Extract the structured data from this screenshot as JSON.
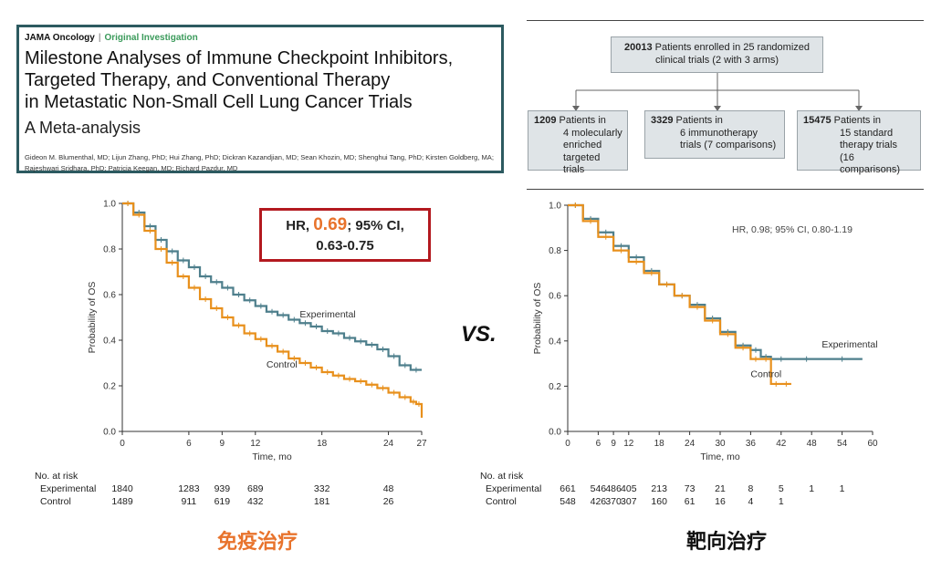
{
  "paper": {
    "journal": "JAMA Oncology",
    "category": "Original Investigation",
    "title_lines": [
      "Milestone Analyses of Immune Checkpoint Inhibitors,",
      "Targeted Therapy, and Conventional Therapy",
      "in Metastatic Non-Small Cell Lung Cancer Trials"
    ],
    "subtitle": "A Meta-analysis",
    "authors_lines": [
      "Gideon M. Blumenthal, MD; Lijun Zhang, PhD; Hui Zhang, PhD; Dickran Kazandjian, MD; Sean Khozin, MD; Shenghui Tang, PhD; Kirsten Goldberg, MA;",
      "Rajeshwari Sridhara, PhD; Patricia Keegan, MD; Richard Pazdur, MD"
    ]
  },
  "flow": {
    "top": {
      "count": "20013",
      "text_line1": "Patients enrolled in 25 randomized",
      "text_line2": "clinical trials (2 with 3 arms)"
    },
    "boxes": [
      {
        "count": "1209",
        "lines": [
          "Patients in",
          "4 molecularly",
          "enriched",
          "targeted trials"
        ]
      },
      {
        "count": "3329",
        "lines": [
          "Patients in",
          "6 immunotherapy",
          "trials (7 comparisons)"
        ]
      },
      {
        "count": "15475",
        "lines": [
          "Patients in",
          "15 standard",
          "therapy trials",
          "(16 comparisons)"
        ]
      }
    ]
  },
  "vs_label": "VS.",
  "hr_box": {
    "prefix": "HR, ",
    "value": "0.69",
    "suffix": "; 95% CI,",
    "line2": "0.63-0.75"
  },
  "labels": {
    "immunotherapy": "免疫治疗",
    "targeted": "靶向治疗"
  },
  "colors": {
    "experimental": "#4e7f8c",
    "control": "#e8901c",
    "border": "#2c5a60",
    "hr_border": "#b3191f",
    "accent": "#e8732c"
  },
  "chart_data": [
    {
      "type": "line",
      "title": "",
      "xlabel": "Time, mo",
      "ylabel": "Probability of OS",
      "xlim": [
        0,
        27
      ],
      "ylim": [
        0,
        1.0
      ],
      "xticks": [
        0,
        6,
        9,
        12,
        18,
        24,
        27
      ],
      "yticks": [
        0,
        0.2,
        0.4,
        0.6,
        0.8,
        1.0
      ],
      "series": [
        {
          "name": "Experimental",
          "x": [
            0,
            1,
            2,
            3,
            4,
            5,
            6,
            7,
            8,
            9,
            10,
            11,
            12,
            13,
            14,
            15,
            16,
            17,
            18,
            19,
            20,
            21,
            22,
            23,
            24,
            25,
            26,
            27
          ],
          "y": [
            1.0,
            0.96,
            0.9,
            0.84,
            0.79,
            0.75,
            0.72,
            0.68,
            0.655,
            0.63,
            0.6,
            0.575,
            0.55,
            0.525,
            0.51,
            0.49,
            0.475,
            0.46,
            0.44,
            0.43,
            0.41,
            0.395,
            0.38,
            0.36,
            0.33,
            0.29,
            0.27,
            0.27
          ]
        },
        {
          "name": "Control",
          "x": [
            0,
            1,
            2,
            3,
            4,
            5,
            6,
            7,
            8,
            9,
            10,
            11,
            12,
            13,
            14,
            15,
            16,
            17,
            18,
            19,
            20,
            21,
            22,
            23,
            24,
            25,
            26,
            26.5,
            27
          ],
          "y": [
            1.0,
            0.95,
            0.88,
            0.8,
            0.74,
            0.68,
            0.63,
            0.58,
            0.54,
            0.5,
            0.465,
            0.43,
            0.405,
            0.375,
            0.35,
            0.32,
            0.3,
            0.28,
            0.26,
            0.245,
            0.23,
            0.22,
            0.205,
            0.19,
            0.17,
            0.15,
            0.13,
            0.12,
            0.06
          ]
        }
      ],
      "annotations": [
        {
          "text": "Experimental",
          "x": 16,
          "y": 0.5
        },
        {
          "text": "Control",
          "x": 13,
          "y": 0.28
        }
      ],
      "risk_table": {
        "header": "No. at risk",
        "times": [
          0,
          6,
          9,
          12,
          18,
          24
        ],
        "rows": [
          {
            "name": "Experimental",
            "values": [
              "1840",
              "1283",
              "939",
              "689",
              "332",
              "48"
            ]
          },
          {
            "name": "Control",
            "values": [
              "1489",
              "911",
              "619",
              "432",
              "181",
              "26"
            ]
          }
        ]
      }
    },
    {
      "type": "line",
      "title": "",
      "xlabel": "Time, mo",
      "ylabel": "Probability of OS",
      "xlim": [
        0,
        60
      ],
      "ylim": [
        0,
        1.0
      ],
      "xticks": [
        0,
        6,
        9,
        12,
        18,
        24,
        30,
        36,
        42,
        48,
        54,
        60
      ],
      "yticks": [
        0,
        0.2,
        0.4,
        0.6,
        0.8,
        1.0
      ],
      "hr_text": "HR, 0.98; 95% CI, 0.80-1.19",
      "series": [
        {
          "name": "Experimental",
          "x": [
            0,
            3,
            6,
            9,
            12,
            15,
            18,
            21,
            24,
            27,
            30,
            33,
            36,
            38,
            40,
            44,
            50,
            58
          ],
          "y": [
            1.0,
            0.94,
            0.88,
            0.82,
            0.77,
            0.71,
            0.65,
            0.6,
            0.56,
            0.5,
            0.44,
            0.38,
            0.36,
            0.33,
            0.32,
            0.32,
            0.32,
            0.32
          ]
        },
        {
          "name": "Control",
          "x": [
            0,
            3,
            6,
            9,
            12,
            15,
            18,
            21,
            24,
            27,
            30,
            33,
            36,
            38,
            40,
            42,
            44
          ],
          "y": [
            1.0,
            0.93,
            0.86,
            0.8,
            0.75,
            0.7,
            0.65,
            0.6,
            0.55,
            0.49,
            0.43,
            0.37,
            0.32,
            0.32,
            0.21,
            0.21,
            0.21
          ]
        }
      ],
      "annotations": [
        {
          "text": "Experimental",
          "x": 50,
          "y": 0.37
        },
        {
          "text": "Control",
          "x": 36,
          "y": 0.24
        }
      ],
      "risk_table": {
        "header": "No. at risk",
        "times": [
          0,
          6,
          9,
          12,
          18,
          24,
          30,
          36,
          42,
          48,
          54
        ],
        "rows": [
          {
            "name": "Experimental",
            "values": [
              "661",
              "546",
              "486",
              "405",
              "213",
              "73",
              "21",
              "8",
              "5",
              "1",
              "1"
            ]
          },
          {
            "name": "Control",
            "values": [
              "548",
              "426",
              "370",
              "307",
              "160",
              "61",
              "16",
              "4",
              "1",
              "",
              ""
            ]
          }
        ]
      }
    }
  ]
}
